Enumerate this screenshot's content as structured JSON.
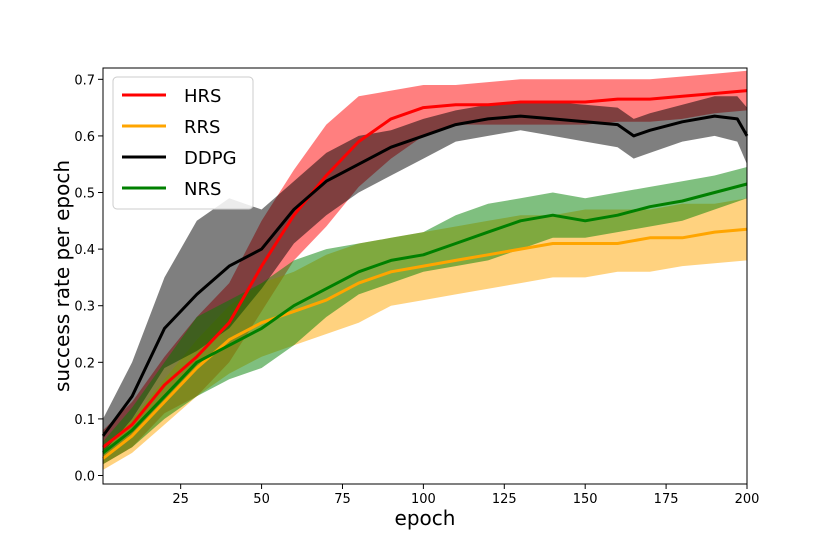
{
  "chart_data": {
    "type": "line",
    "title": "",
    "xlabel": "epoch",
    "ylabel": "success rate per epoch",
    "xlim": [
      1,
      200
    ],
    "ylim": [
      -0.015,
      0.72
    ],
    "x_ticks": [
      25,
      50,
      75,
      100,
      125,
      150,
      175,
      200
    ],
    "y_ticks": [
      0.0,
      0.1,
      0.2,
      0.3,
      0.4,
      0.5,
      0.6,
      0.7
    ],
    "x_tick_labels": [
      "25",
      "50",
      "75",
      "100",
      "125",
      "150",
      "175",
      "200"
    ],
    "y_tick_labels": [
      "0.0",
      "0.1",
      "0.2",
      "0.3",
      "0.4",
      "0.5",
      "0.6",
      "0.7"
    ],
    "grid": false,
    "legend_position": "top-left",
    "band_opacity": 0.5,
    "series": [
      {
        "name": "HRS",
        "color": "#ff0000",
        "x": [
          1,
          10,
          20,
          30,
          40,
          50,
          60,
          70,
          80,
          90,
          100,
          110,
          120,
          130,
          140,
          150,
          160,
          170,
          180,
          190,
          200
        ],
        "mean": [
          0.05,
          0.09,
          0.16,
          0.21,
          0.27,
          0.37,
          0.46,
          0.53,
          0.59,
          0.63,
          0.65,
          0.655,
          0.655,
          0.66,
          0.66,
          0.66,
          0.665,
          0.665,
          0.67,
          0.675,
          0.68
        ],
        "upper": [
          0.08,
          0.13,
          0.21,
          0.28,
          0.34,
          0.45,
          0.54,
          0.62,
          0.67,
          0.68,
          0.69,
          0.69,
          0.695,
          0.7,
          0.7,
          0.7,
          0.7,
          0.7,
          0.705,
          0.71,
          0.715
        ],
        "lower": [
          0.02,
          0.05,
          0.11,
          0.14,
          0.2,
          0.29,
          0.38,
          0.44,
          0.51,
          0.56,
          0.6,
          0.62,
          0.62,
          0.62,
          0.62,
          0.62,
          0.625,
          0.625,
          0.63,
          0.64,
          0.645
        ]
      },
      {
        "name": "RRS",
        "color": "#ffa500",
        "x": [
          1,
          10,
          20,
          30,
          40,
          50,
          60,
          70,
          80,
          90,
          100,
          110,
          120,
          130,
          140,
          150,
          160,
          170,
          180,
          190,
          200
        ],
        "mean": [
          0.03,
          0.07,
          0.13,
          0.19,
          0.24,
          0.27,
          0.29,
          0.31,
          0.34,
          0.36,
          0.37,
          0.38,
          0.39,
          0.4,
          0.41,
          0.41,
          0.41,
          0.42,
          0.42,
          0.43,
          0.435
        ],
        "upper": [
          0.05,
          0.1,
          0.17,
          0.24,
          0.3,
          0.34,
          0.36,
          0.39,
          0.41,
          0.42,
          0.43,
          0.44,
          0.45,
          0.46,
          0.46,
          0.47,
          0.47,
          0.47,
          0.48,
          0.48,
          0.49
        ],
        "lower": [
          0.01,
          0.04,
          0.09,
          0.14,
          0.18,
          0.21,
          0.23,
          0.25,
          0.27,
          0.3,
          0.31,
          0.32,
          0.33,
          0.34,
          0.35,
          0.35,
          0.36,
          0.36,
          0.37,
          0.375,
          0.38
        ]
      },
      {
        "name": "DDPG",
        "color": "#000000",
        "x": [
          1,
          10,
          20,
          30,
          40,
          50,
          60,
          70,
          80,
          90,
          100,
          110,
          120,
          130,
          140,
          150,
          160,
          165,
          170,
          180,
          190,
          197,
          200
        ],
        "mean": [
          0.07,
          0.14,
          0.26,
          0.32,
          0.37,
          0.4,
          0.47,
          0.52,
          0.55,
          0.58,
          0.6,
          0.62,
          0.63,
          0.635,
          0.63,
          0.625,
          0.62,
          0.6,
          0.61,
          0.625,
          0.635,
          0.63,
          0.6
        ],
        "upper": [
          0.1,
          0.2,
          0.35,
          0.45,
          0.49,
          0.47,
          0.52,
          0.57,
          0.6,
          0.61,
          0.63,
          0.645,
          0.655,
          0.66,
          0.66,
          0.655,
          0.65,
          0.63,
          0.64,
          0.655,
          0.67,
          0.67,
          0.65
        ],
        "lower": [
          0.04,
          0.1,
          0.19,
          0.22,
          0.26,
          0.33,
          0.41,
          0.46,
          0.5,
          0.53,
          0.56,
          0.59,
          0.6,
          0.61,
          0.6,
          0.59,
          0.58,
          0.56,
          0.57,
          0.59,
          0.6,
          0.59,
          0.55
        ]
      },
      {
        "name": "NRS",
        "color": "#008000",
        "x": [
          1,
          10,
          20,
          30,
          40,
          50,
          60,
          70,
          80,
          90,
          100,
          110,
          120,
          130,
          140,
          150,
          160,
          170,
          180,
          190,
          200
        ],
        "mean": [
          0.04,
          0.08,
          0.14,
          0.2,
          0.23,
          0.26,
          0.3,
          0.33,
          0.36,
          0.38,
          0.39,
          0.41,
          0.43,
          0.45,
          0.46,
          0.45,
          0.46,
          0.475,
          0.485,
          0.5,
          0.515
        ],
        "upper": [
          0.06,
          0.12,
          0.2,
          0.28,
          0.31,
          0.34,
          0.38,
          0.4,
          0.41,
          0.42,
          0.43,
          0.46,
          0.48,
          0.49,
          0.5,
          0.49,
          0.5,
          0.51,
          0.52,
          0.53,
          0.545
        ],
        "lower": [
          0.02,
          0.05,
          0.1,
          0.14,
          0.17,
          0.19,
          0.23,
          0.28,
          0.32,
          0.34,
          0.36,
          0.37,
          0.38,
          0.4,
          0.42,
          0.42,
          0.43,
          0.44,
          0.45,
          0.47,
          0.49
        ]
      }
    ]
  }
}
